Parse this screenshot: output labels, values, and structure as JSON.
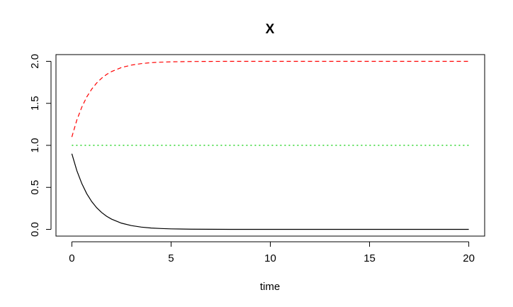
{
  "chart_data": {
    "type": "line",
    "title": "X",
    "xlabel": "time",
    "ylabel": "",
    "xlim": [
      -0.8,
      20.8
    ],
    "ylim": [
      -0.08,
      2.08
    ],
    "xticks": [
      0,
      5,
      10,
      15,
      20
    ],
    "yticks": [
      0.0,
      0.5,
      1.0,
      1.5,
      2.0
    ],
    "xtick_labels": [
      "0",
      "5",
      "10",
      "15",
      "20"
    ],
    "ytick_labels": [
      "0.0",
      "0.5",
      "1.0",
      "1.5",
      "2.0"
    ],
    "grid": false,
    "legend": "none",
    "series": [
      {
        "color": "#000000",
        "dash": "solid",
        "x": [
          0,
          0.25,
          0.5,
          0.75,
          1,
          1.25,
          1.5,
          1.75,
          2,
          2.5,
          3,
          3.5,
          4,
          4.5,
          5,
          6,
          7,
          8,
          10,
          12,
          15,
          20
        ],
        "y": [
          0.9,
          0.7,
          0.546,
          0.425,
          0.331,
          0.258,
          0.201,
          0.156,
          0.122,
          0.074,
          0.045,
          0.027,
          0.016,
          0.01,
          0.006,
          0.002,
          0.001,
          0.0,
          0.0,
          0.0,
          0.0,
          0.0
        ]
      },
      {
        "color": "#ff0000",
        "dash": "dashed",
        "x": [
          0,
          0.25,
          0.5,
          0.75,
          1,
          1.25,
          1.5,
          1.75,
          2,
          2.5,
          3,
          3.5,
          4,
          4.5,
          5,
          6,
          7,
          8,
          10,
          12,
          15,
          20
        ],
        "y": [
          1.1,
          1.3,
          1.454,
          1.575,
          1.669,
          1.742,
          1.799,
          1.844,
          1.878,
          1.926,
          1.955,
          1.973,
          1.984,
          1.99,
          1.994,
          1.998,
          1.999,
          2.0,
          2.0,
          2.0,
          2.0,
          2.0
        ]
      },
      {
        "color": "#00cd00",
        "dash": "dotted",
        "x": [
          0,
          20
        ],
        "y": [
          1.0,
          1.0
        ]
      }
    ]
  }
}
